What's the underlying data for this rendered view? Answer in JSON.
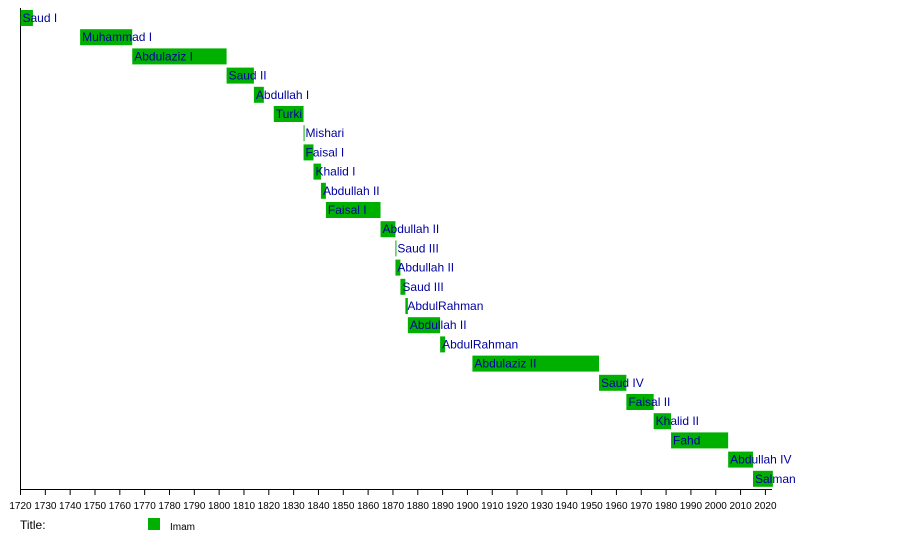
{
  "chart_data": {
    "type": "bar",
    "orientation": "horizontal-timeline",
    "xlim": [
      1720,
      2020
    ],
    "x_ticks": [
      1720,
      1730,
      1740,
      1750,
      1760,
      1770,
      1780,
      1790,
      1800,
      1810,
      1820,
      1830,
      1840,
      1850,
      1860,
      1870,
      1880,
      1890,
      1900,
      1910,
      1920,
      1930,
      1940,
      1950,
      1960,
      1970,
      1980,
      1990,
      2000,
      2010,
      2020
    ],
    "bar_color": "#00b000",
    "label_color": "#0000a0",
    "legend": {
      "title": "Title:",
      "entries": [
        {
          "label": "Imam",
          "color": "#00b000"
        }
      ],
      "placement": "bottom-left"
    },
    "bars": [
      {
        "label": "Saud I",
        "start": 1720,
        "end": 1725
      },
      {
        "label": "Muhammad I",
        "start": 1744,
        "end": 1765
      },
      {
        "label": "Abdulaziz I",
        "start": 1765,
        "end": 1803
      },
      {
        "label": "Saud II",
        "start": 1803,
        "end": 1814
      },
      {
        "label": "Abdullah I",
        "start": 1814,
        "end": 1818
      },
      {
        "label": "Turki",
        "start": 1822,
        "end": 1834
      },
      {
        "label": "Mishari",
        "start": 1834,
        "end": 1834
      },
      {
        "label": "Faisal I",
        "start": 1834,
        "end": 1838
      },
      {
        "label": "Khalid I",
        "start": 1838,
        "end": 1841
      },
      {
        "label": "Abdullah II",
        "start": 1841,
        "end": 1843
      },
      {
        "label": "Faisal I",
        "start": 1843,
        "end": 1865
      },
      {
        "label": "Abdullah II",
        "start": 1865,
        "end": 1871
      },
      {
        "label": "Saud III",
        "start": 1871,
        "end": 1871
      },
      {
        "label": "Abdullah II",
        "start": 1871,
        "end": 1873
      },
      {
        "label": "Saud III",
        "start": 1873,
        "end": 1875
      },
      {
        "label": "AbdulRahman",
        "start": 1875,
        "end": 1876
      },
      {
        "label": "Abdullah II",
        "start": 1876,
        "end": 1889
      },
      {
        "label": "AbdulRahman",
        "start": 1889,
        "end": 1891
      },
      {
        "label": "Abdulaziz II",
        "start": 1902,
        "end": 1953
      },
      {
        "label": "Saud IV",
        "start": 1953,
        "end": 1964
      },
      {
        "label": "Faisal II",
        "start": 1964,
        "end": 1975
      },
      {
        "label": "Khalid II",
        "start": 1975,
        "end": 1982
      },
      {
        "label": "Fahd",
        "start": 1982,
        "end": 2005
      },
      {
        "label": "Abdullah IV",
        "start": 2005,
        "end": 2015
      },
      {
        "label": "Salman",
        "start": 2015,
        "end": 2023
      }
    ]
  }
}
